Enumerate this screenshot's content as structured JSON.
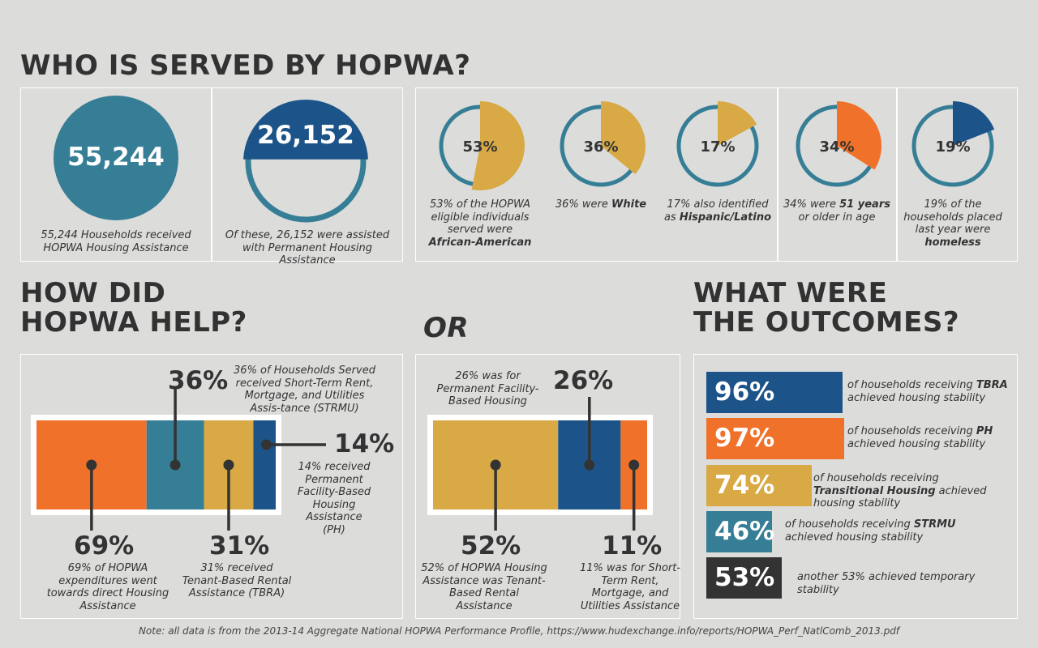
{
  "titles": {
    "served": "WHO IS SERVED BY HOPWA?",
    "help_line1": "HOW DID",
    "help_line2": "HOPWA HELP?",
    "or": "OR",
    "outcomes_line1": "WHAT WERE",
    "outcomes_line2": "THE OUTCOMES?"
  },
  "colors": {
    "teal": "#367e95",
    "navy": "#1c548a",
    "gold": "#d8a944",
    "orange": "#f0722a",
    "dark": "#333333",
    "background": "#dcdcdb"
  },
  "households": {
    "total_value": "55,244",
    "total_caption": "55,244 Households received HOPWA Housing Assistance",
    "permanent_value": "26,152",
    "permanent_caption": "Of these, 26,152 were assisted with Permanent Housing Assistance",
    "permanent_fraction": 0.473
  },
  "chart_data": [
    {
      "type": "pie",
      "title": "",
      "series": [
        {
          "label": "53%",
          "value": 53,
          "caption": "53% of the HOPWA eligible individuals served were African-American",
          "color": "#d8a944"
        },
        {
          "label": "36%",
          "value": 36,
          "caption": "36% were White",
          "color": "#d8a944"
        },
        {
          "label": "17%",
          "value": 17,
          "caption": "17% also identified as Hispanic/Latino",
          "color": "#d8a944"
        },
        {
          "label": "34%",
          "value": 34,
          "caption": "34% were 51 years or older in age",
          "color": "#f0722a"
        },
        {
          "label": "19%",
          "value": 19,
          "caption": "19% of the households placed last year were homeless",
          "color": "#1c548a"
        }
      ]
    },
    {
      "type": "bar",
      "title": "",
      "orientation": "horizontal-stacked",
      "segments": [
        {
          "value": 69,
          "label": "69%",
          "caption": "69% of HOPWA expenditures went towards direct Housing Assistance",
          "color": "#f0722a"
        },
        {
          "value": 36,
          "label": "36%",
          "caption": "36% of Households Served received Short-Term Rent, Mortgage, and Utilities Assis-tance (STRMU)",
          "color": "#367e95"
        },
        {
          "value": 31,
          "label": "31%",
          "caption": "31%  received Tenant-Based Rental Assistance (TBRA)",
          "color": "#d8a944"
        },
        {
          "value": 14,
          "label": "14%",
          "caption": "14%  received Permanent Facility-Based Housing Assistance (PH)",
          "color": "#1c548a"
        }
      ]
    },
    {
      "type": "bar",
      "title": "",
      "orientation": "horizontal-stacked",
      "segments": [
        {
          "value": 52,
          "label": "52%",
          "caption": "52% of HOPWA Housing Assistance was Tenant-Based Rental Assistance",
          "color": "#d8a944"
        },
        {
          "value": 26,
          "label": "26%",
          "caption": "26% was for Permanent Facility-Based Housing",
          "color": "#1c548a"
        },
        {
          "value": 11,
          "label": "11%",
          "caption": "11% was for Short-Term Rent, Mortgage, and Utilities Assistance",
          "color": "#f0722a"
        }
      ]
    },
    {
      "type": "bar",
      "title": "",
      "orientation": "horizontal",
      "categories": [
        "TBRA",
        "PH",
        "Transitional Housing",
        "STRMU",
        "temporary stability"
      ],
      "values": [
        96,
        97,
        74,
        46,
        53
      ],
      "labels": [
        "96%",
        "97%",
        "74%",
        "46%",
        "53%"
      ],
      "colors": [
        "#1c548a",
        "#f0722a",
        "#d8a944",
        "#367e95",
        "#333333"
      ],
      "descriptions": [
        {
          "pre": "of households receiving ",
          "bold": "TBRA",
          "post": " achieved housing stability"
        },
        {
          "pre": "of households receiving ",
          "bold": "PH",
          "post": " achieved housing stability"
        },
        {
          "pre": "of households receiving ",
          "bold": "Transitional Housing",
          "post": " achieved housing stability"
        },
        {
          "pre": "of households receiving ",
          "bold": "STRMU",
          "post": " achieved housing stability"
        },
        {
          "pre": "another 53% achieved temporary stability",
          "bold": "",
          "post": ""
        }
      ]
    }
  ],
  "note": "Note: all data is from the 2013-14 Aggregate National HOPWA Performance Profile, https://www.hudexchange.info/reports/HOPWA_Perf_NatlComb_2013.pdf"
}
